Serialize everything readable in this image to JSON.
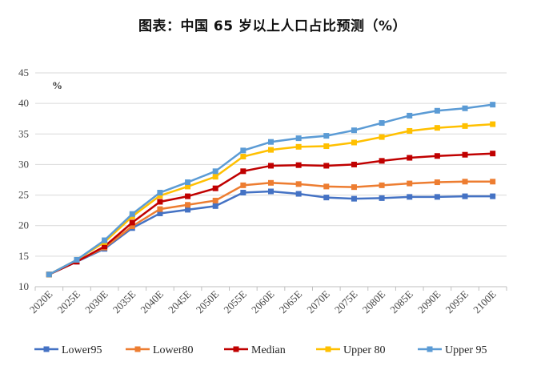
{
  "title": "图表：中国  65 岁以上人口占比预测（%）",
  "chart_data": {
    "type": "line",
    "unit_label": "%",
    "categories": [
      "2020E",
      "2025E",
      "2030E",
      "2035E",
      "2040E",
      "2045E",
      "2050E",
      "2055E",
      "2060E",
      "2065E",
      "2070E",
      "2075E",
      "2080E",
      "2085E",
      "2090E",
      "2095E",
      "2100E"
    ],
    "ylim": [
      10,
      45
    ],
    "yticks": [
      10,
      15,
      20,
      25,
      30,
      35,
      40,
      45
    ],
    "grid": true,
    "legend_position": "bottom",
    "series": [
      {
        "name": "Lower95",
        "color": "#4472C4",
        "values": [
          12.0,
          14.1,
          16.2,
          19.6,
          22.0,
          22.6,
          23.2,
          25.4,
          25.6,
          25.2,
          24.6,
          24.4,
          24.5,
          24.7,
          24.7,
          24.8,
          24.8
        ]
      },
      {
        "name": "Lower80",
        "color": "#ED7D31",
        "values": [
          12.0,
          14.2,
          16.4,
          19.9,
          22.7,
          23.4,
          24.1,
          26.6,
          27.0,
          26.8,
          26.4,
          26.3,
          26.6,
          26.9,
          27.1,
          27.2,
          27.2
        ]
      },
      {
        "name": "Median",
        "color": "#C00000",
        "values": [
          12.0,
          14.1,
          16.6,
          20.5,
          23.9,
          24.8,
          26.1,
          28.9,
          29.8,
          29.9,
          29.8,
          30.0,
          30.6,
          31.1,
          31.4,
          31.6,
          31.8
        ]
      },
      {
        "name": "Upper 80",
        "color": "#FFC000",
        "values": [
          12.0,
          14.4,
          17.3,
          21.5,
          24.9,
          26.4,
          28.0,
          31.3,
          32.4,
          32.9,
          33.0,
          33.6,
          34.5,
          35.5,
          36.0,
          36.3,
          36.6
        ]
      },
      {
        "name": "Upper 95",
        "color": "#5B9BD5",
        "values": [
          12.0,
          14.4,
          17.6,
          21.9,
          25.4,
          27.1,
          28.9,
          32.3,
          33.7,
          34.3,
          34.7,
          35.6,
          36.8,
          38.0,
          38.8,
          39.2,
          39.8
        ]
      }
    ]
  }
}
